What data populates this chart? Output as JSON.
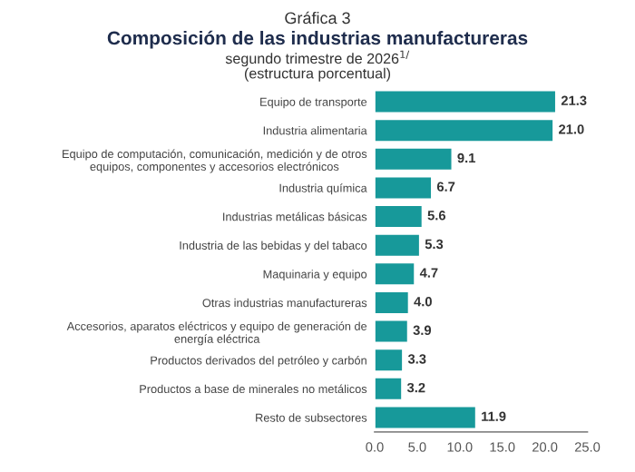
{
  "chart_data": {
    "type": "bar",
    "orientation": "horizontal",
    "annotations": [
      "Gráfica 3"
    ],
    "title": "Composición de las industrias manufactureras",
    "subtitle": "segundo trimestre de 2026$^{1/}$\n(estructura porcentual)",
    "categories": [
      "Equipo de transporte",
      "Industria alimentaria",
      "Equipo de computación, comunicación, medición y de otros\nequipos, componentes y accesorios electrónicos",
      "Industria química",
      "Industrias metálicas básicas",
      "Industria de las bebidas y del tabaco",
      "Maquinaria y equipo",
      "Otras industrias manufactureras",
      "Accesorios, aparatos eléctricos y equipo de generación de\nenergía eléctrica",
      "Productos derivados del petróleo y carbón",
      "Productos a base de minerales no metálicos",
      "Resto de subsectores"
    ],
    "values": [
      21.3,
      21.0,
      9.1,
      6.7,
      5.6,
      5.3,
      4.7,
      4.0,
      3.9,
      3.3,
      3.2,
      11.9
    ],
    "color": "#17999a",
    "value_labels": [
      "21.3",
      "21.0",
      "9.1",
      "6.7",
      "5.6",
      "5.3",
      "4.7",
      "4.0",
      "3.9",
      "3.3",
      "3.2",
      "11.9"
    ],
    "xlim": [
      0,
      25
    ],
    "xticks": [
      {
        "value": 0,
        "label": "0.0"
      },
      {
        "value": 5,
        "label": "5.0"
      },
      {
        "value": 10,
        "label": "10.0"
      },
      {
        "value": 15,
        "label": "15.0"
      },
      {
        "value": 20,
        "label": "20.0"
      },
      {
        "value": 25,
        "label": "25.0"
      }
    ],
    "grid": false,
    "legend": false
  }
}
